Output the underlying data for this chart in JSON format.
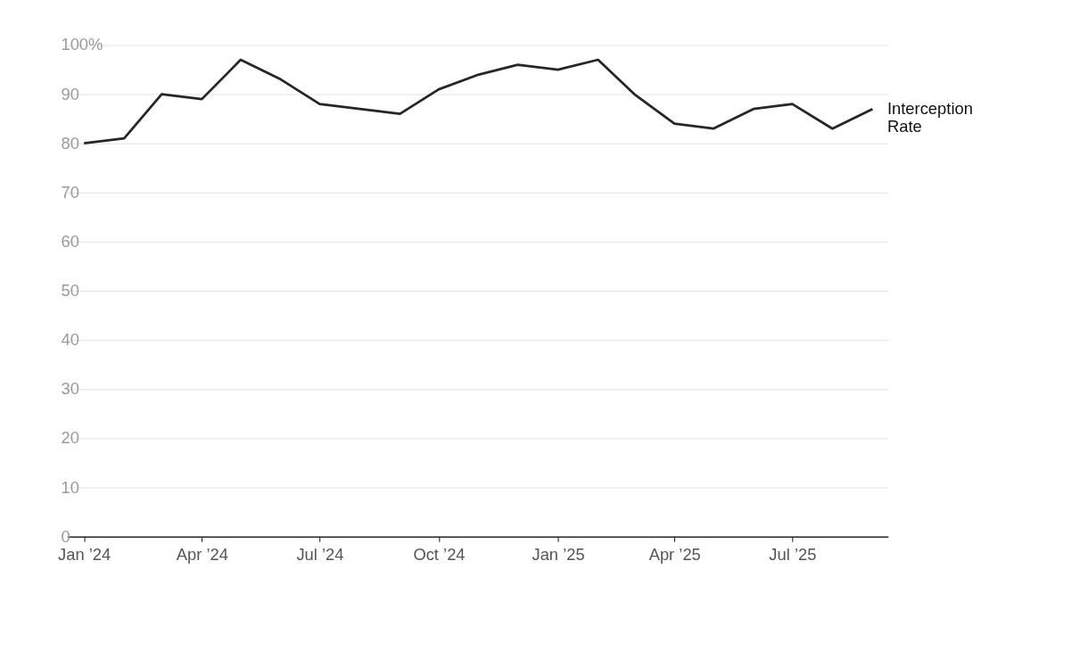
{
  "chart_data": {
    "type": "line",
    "x": [
      "2024-01",
      "2024-02",
      "2024-03",
      "2024-04",
      "2024-05",
      "2024-06",
      "2024-07",
      "2024-08",
      "2024-09",
      "2024-10",
      "2024-11",
      "2024-12",
      "2025-01",
      "2025-02",
      "2025-03",
      "2025-04",
      "2025-05",
      "2025-06",
      "2025-07",
      "2025-08",
      "2025-09"
    ],
    "series": [
      {
        "name": "Interception Rate",
        "color": "#262626",
        "values": [
          80,
          81,
          90,
          89,
          97,
          93,
          88,
          87,
          86,
          91,
          94,
          96,
          95,
          97,
          90,
          84,
          83,
          87,
          88,
          83,
          87
        ]
      }
    ],
    "xlim": [
      "2023-12-19",
      "2025-09-13"
    ],
    "xticks": [
      {
        "value": "2024-01",
        "label": "Jan ’24"
      },
      {
        "value": "2024-04",
        "label": "Apr ’24"
      },
      {
        "value": "2024-07",
        "label": "Jul ’24"
      },
      {
        "value": "2024-10",
        "label": "Oct ’24"
      },
      {
        "value": "2025-01",
        "label": "Jan ’25"
      },
      {
        "value": "2025-04",
        "label": "Apr ’25"
      },
      {
        "value": "2025-07",
        "label": "Jul ’25"
      }
    ],
    "ylim": [
      0,
      100
    ],
    "yticks": [
      0,
      10,
      20,
      30,
      40,
      50,
      60,
      70,
      80,
      90,
      {
        "value": 100,
        "label": "100%"
      }
    ],
    "grid": "y",
    "legend": false,
    "marker": "none",
    "line_style": "solid"
  }
}
